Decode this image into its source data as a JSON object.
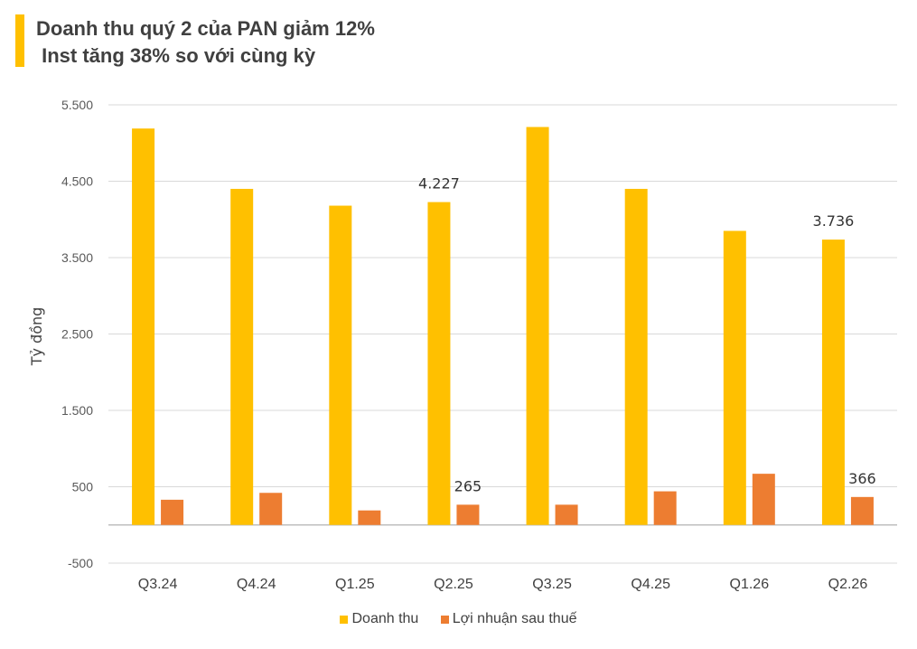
{
  "title": {
    "line1": "Doanh thu quý 2 của PAN giảm 12%",
    "line2": " Inst tăng 38% so với cùng kỳ"
  },
  "chart_data": {
    "type": "bar",
    "categories": [
      "Q3.24",
      "Q4.24",
      "Q1.25",
      "Q2.25",
      "Q3.25",
      "Q4.25",
      "Q1.26",
      "Q2.26"
    ],
    "series": [
      {
        "name": "Doanh thu",
        "color": "#FFC000",
        "values": [
          5190,
          4400,
          4180,
          4227,
          5210,
          4400,
          3850,
          3736
        ]
      },
      {
        "name": "Lợi nhuận sau thuế",
        "color": "#ED7D31",
        "values": [
          330,
          420,
          190,
          265,
          265,
          440,
          670,
          366
        ]
      }
    ],
    "data_labels": [
      {
        "series": 0,
        "index": 3,
        "text": "4.227"
      },
      {
        "series": 0,
        "index": 7,
        "text": "3.736"
      },
      {
        "series": 1,
        "index": 3,
        "text": "265"
      },
      {
        "series": 1,
        "index": 7,
        "text": "366"
      }
    ],
    "ylabel": "Tỷ đồng",
    "ylim": [
      -500,
      5500
    ],
    "yticks": [
      -500,
      500,
      1500,
      2500,
      3500,
      4500,
      5500
    ],
    "ytick_labels": [
      "-500",
      "500",
      "1.500",
      "2.500",
      "3.500",
      "4.500",
      "5.500"
    ],
    "grid": true,
    "legend_position": "bottom"
  }
}
